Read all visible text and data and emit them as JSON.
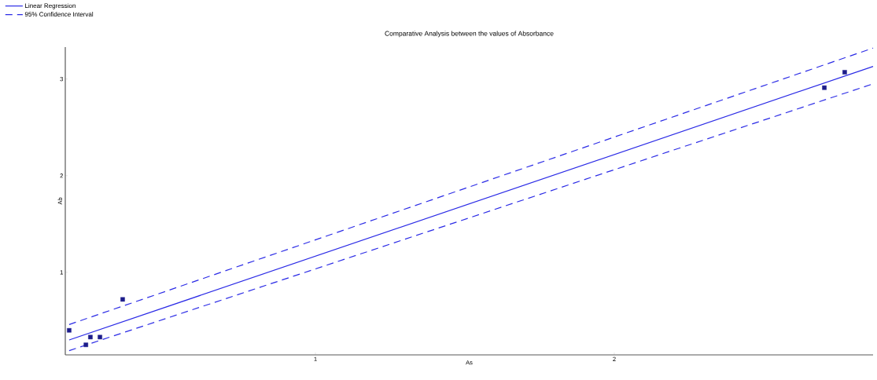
{
  "chart_data": {
    "type": "line",
    "title": "Comparative Analysis between the values of Absorbance",
    "xlabel": "As",
    "ylabel": "Ab",
    "xlim": [
      0.163,
      2.866
    ],
    "ylim": [
      0.146,
      3.33
    ],
    "xticks": [
      1,
      2
    ],
    "yticks": [
      1,
      2,
      3
    ],
    "grid": false,
    "legend": "top left",
    "series": [
      {
        "type": "scatter",
        "color": "#1c1c8a",
        "marker": "square",
        "x": [
          0.176,
          0.232,
          0.247,
          0.279,
          0.355,
          2.703,
          2.771
        ],
        "values": [
          0.4,
          0.25,
          0.33,
          0.33,
          0.72,
          2.91,
          3.07
        ]
      },
      {
        "name": "Linear Regression",
        "color": "#2b2be6",
        "line_style": "solid",
        "marker": "none",
        "x": [
          0.176,
          2.866
        ],
        "values": [
          0.3,
          3.13
        ]
      },
      {
        "name": "95% Confidence Interval",
        "color": "#2b2be6",
        "line_style": "dashed",
        "marker": "none",
        "x": [
          0.176,
          2.866
        ],
        "values": [
          0.46,
          3.32
        ]
      },
      {
        "color": "#2b2be6",
        "line_style": "dashed",
        "marker": "none",
        "x": [
          0.176,
          2.866
        ],
        "values": [
          0.19,
          2.95
        ]
      }
    ]
  }
}
